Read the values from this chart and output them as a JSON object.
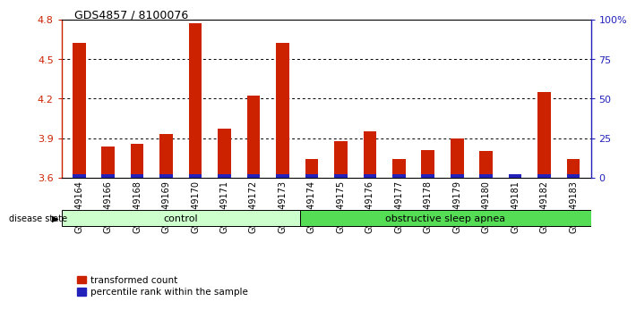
{
  "title": "GDS4857 / 8100076",
  "samples": [
    "GSM949164",
    "GSM949166",
    "GSM949168",
    "GSM949169",
    "GSM949170",
    "GSM949171",
    "GSM949172",
    "GSM949173",
    "GSM949174",
    "GSM949175",
    "GSM949176",
    "GSM949177",
    "GSM949178",
    "GSM949179",
    "GSM949180",
    "GSM949181",
    "GSM949182",
    "GSM949183"
  ],
  "red_values": [
    4.62,
    3.84,
    3.86,
    3.93,
    4.77,
    3.97,
    4.22,
    4.62,
    3.74,
    3.88,
    3.95,
    3.74,
    3.81,
    3.9,
    3.8,
    3.63,
    4.25,
    3.74
  ],
  "blue_bar_height": 0.025,
  "ylim_left": [
    3.6,
    4.8
  ],
  "ylim_right": [
    0,
    100
  ],
  "left_ticks": [
    3.6,
    3.9,
    4.2,
    4.5,
    4.8
  ],
  "right_ticks": [
    0,
    25,
    50,
    75,
    100
  ],
  "right_tick_labels": [
    "0",
    "25",
    "50",
    "75",
    "100%"
  ],
  "bar_color_red": "#cc2200",
  "bar_color_blue": "#2222bb",
  "control_samples": 8,
  "control_label": "control",
  "disease_label": "obstructive sleep apnea",
  "disease_state_label": "disease state",
  "legend_red": "transformed count",
  "legend_blue": "percentile rank within the sample",
  "control_bg": "#ccffcc",
  "disease_bg": "#55dd55",
  "bar_width": 0.45,
  "title_fontsize": 9,
  "tick_fontsize": 8,
  "xlabel_fontsize": 7,
  "legend_fontsize": 7.5
}
